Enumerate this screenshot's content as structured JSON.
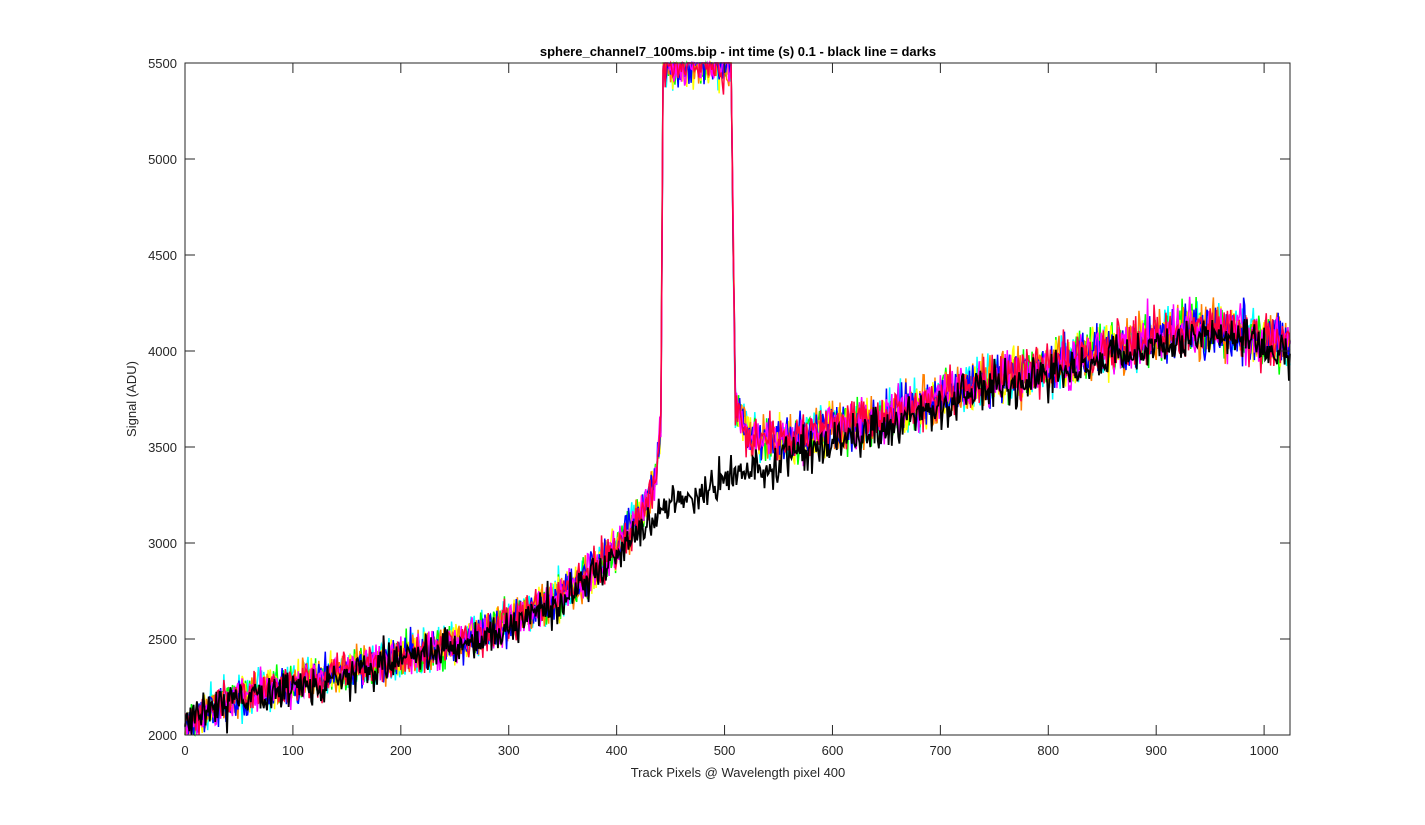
{
  "chart_data": {
    "type": "line",
    "title": "sphere_channel7_100ms.bip - int time (s) 0.1 - black line = darks",
    "xlabel": "Track Pixels @ Wavelength pixel 400",
    "ylabel": "Signal (ADU)",
    "xlim": [
      0,
      1024
    ],
    "ylim": [
      2000,
      5500
    ],
    "xticks": [
      0,
      100,
      200,
      300,
      400,
      500,
      600,
      700,
      800,
      900,
      1000
    ],
    "yticks": [
      2000,
      2500,
      3000,
      3500,
      4000,
      4500,
      5000,
      5500
    ],
    "grid": false,
    "legend": "none",
    "series_colors": [
      "#00ffff",
      "#00ff00",
      "#ffff00",
      "#ff8000",
      "#0000ff",
      "#ff00ff",
      "#ff0040",
      "#000000"
    ],
    "dark_series_color": "#000000",
    "series": [
      {
        "role": "lit-frames",
        "x": [
          0,
          25,
          50,
          75,
          100,
          125,
          150,
          175,
          200,
          225,
          250,
          275,
          300,
          325,
          350,
          375,
          400,
          420,
          435,
          441,
          443,
          447,
          460,
          480,
          500,
          503,
          506,
          510,
          525,
          550,
          575,
          600,
          625,
          650,
          675,
          700,
          725,
          750,
          775,
          800,
          825,
          850,
          875,
          900,
          925,
          950,
          975,
          1000,
          1024
        ],
        "values": [
          2050,
          2150,
          2200,
          2240,
          2270,
          2300,
          2330,
          2370,
          2410,
          2440,
          2480,
          2530,
          2590,
          2660,
          2740,
          2840,
          2970,
          3140,
          3280,
          3600,
          5500,
          5500,
          5500,
          5500,
          5500,
          5500,
          5500,
          3700,
          3560,
          3540,
          3560,
          3600,
          3630,
          3660,
          3700,
          3760,
          3810,
          3850,
          3880,
          3920,
          3960,
          4000,
          4030,
          4080,
          4120,
          4120,
          4110,
          4050,
          4050
        ]
      },
      {
        "role": "darks",
        "x": [
          0,
          25,
          50,
          75,
          100,
          125,
          150,
          175,
          200,
          225,
          250,
          275,
          300,
          325,
          350,
          375,
          400,
          425,
          450,
          475,
          500,
          525,
          550,
          575,
          600,
          625,
          650,
          675,
          700,
          725,
          750,
          775,
          800,
          825,
          850,
          875,
          900,
          925,
          950,
          975,
          1000,
          1024
        ],
        "values": [
          2050,
          2130,
          2180,
          2220,
          2250,
          2280,
          2310,
          2350,
          2390,
          2420,
          2460,
          2500,
          2560,
          2630,
          2700,
          2800,
          2930,
          3080,
          3180,
          3260,
          3330,
          3380,
          3430,
          3480,
          3520,
          3570,
          3620,
          3670,
          3720,
          3770,
          3810,
          3850,
          3880,
          3920,
          3950,
          3990,
          4030,
          4060,
          4070,
          4060,
          4020,
          4000
        ]
      }
    ]
  }
}
